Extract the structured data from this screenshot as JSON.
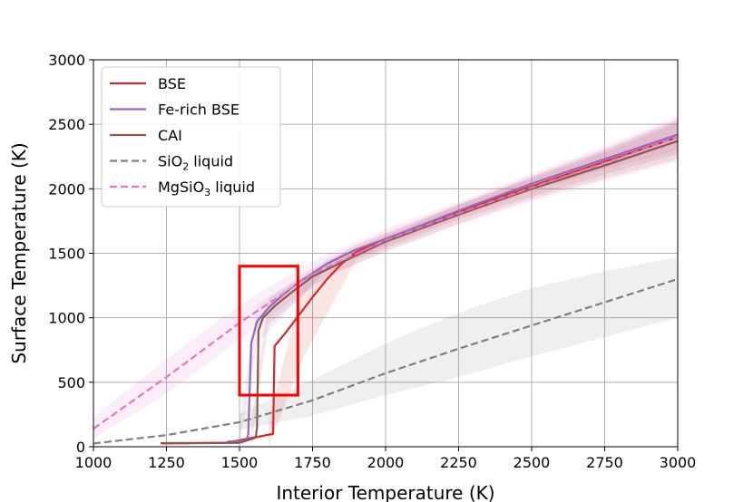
{
  "chart_data": {
    "type": "line",
    "title": "",
    "xlabel": "Interior Temperature (K)",
    "ylabel": "Surface Temperature (K)",
    "xlim": [
      1000,
      3000
    ],
    "ylim": [
      0,
      3000
    ],
    "xticks": [
      1000,
      1250,
      1500,
      1750,
      2000,
      2250,
      2500,
      2750,
      3000
    ],
    "yticks": [
      0,
      500,
      1000,
      1500,
      2000,
      2500,
      3000
    ],
    "grid": true,
    "legend_position": "upper-left",
    "series": [
      {
        "name": "BSE",
        "label_main": "BSE",
        "label_sub": "",
        "label_tail": "",
        "color": "#d62728",
        "dash": "solid",
        "points": [
          [
            1230,
            25
          ],
          [
            1450,
            30
          ],
          [
            1570,
            80
          ],
          [
            1615,
            100
          ],
          [
            1620,
            780
          ],
          [
            1660,
            890
          ],
          [
            1700,
            1010
          ],
          [
            1750,
            1160
          ],
          [
            1800,
            1300
          ],
          [
            1850,
            1420
          ],
          [
            1900,
            1510
          ],
          [
            2000,
            1610
          ],
          [
            2250,
            1820
          ],
          [
            2500,
            2020
          ],
          [
            2750,
            2210
          ],
          [
            3000,
            2400
          ]
        ],
        "band": [
          [
            1600,
            0,
            200
          ],
          [
            1720,
            700,
            1300
          ],
          [
            1900,
            1450,
            1570
          ],
          [
            2250,
            1760,
            1880
          ],
          [
            2500,
            1940,
            2090
          ],
          [
            2750,
            2110,
            2300
          ],
          [
            3000,
            2270,
            2530
          ]
        ]
      },
      {
        "name": "Fe-rich BSE",
        "label_main": "Fe-rich BSE",
        "label_sub": "",
        "label_tail": "",
        "color": "#9467bd",
        "dash": "solid",
        "points": [
          [
            1460,
            40
          ],
          [
            1525,
            50
          ],
          [
            1530,
            100
          ],
          [
            1540,
            800
          ],
          [
            1560,
            970
          ],
          [
            1600,
            1080
          ],
          [
            1650,
            1180
          ],
          [
            1700,
            1270
          ],
          [
            1800,
            1420
          ],
          [
            1900,
            1530
          ],
          [
            2000,
            1610
          ],
          [
            2250,
            1830
          ],
          [
            2500,
            2040
          ],
          [
            2750,
            2230
          ],
          [
            3000,
            2420
          ]
        ],
        "band": [
          [
            1500,
            0,
            200
          ],
          [
            1560,
            800,
            1100
          ],
          [
            1800,
            1380,
            1460
          ],
          [
            2250,
            1780,
            1880
          ],
          [
            2500,
            1980,
            2100
          ],
          [
            2750,
            2150,
            2310
          ],
          [
            3000,
            2300,
            2540
          ]
        ]
      },
      {
        "name": "CAI",
        "label_main": "CAI",
        "label_sub": "",
        "label_tail": "",
        "color": "#8c564b",
        "dash": "solid",
        "points": [
          [
            1230,
            28
          ],
          [
            1500,
            30
          ],
          [
            1555,
            70
          ],
          [
            1560,
            150
          ],
          [
            1565,
            900
          ],
          [
            1580,
            1000
          ],
          [
            1620,
            1090
          ],
          [
            1680,
            1200
          ],
          [
            1750,
            1320
          ],
          [
            1850,
            1430
          ],
          [
            2000,
            1590
          ],
          [
            2250,
            1800
          ],
          [
            2500,
            2000
          ],
          [
            2750,
            2180
          ],
          [
            3000,
            2370
          ]
        ],
        "band": [
          [
            1540,
            0,
            200
          ],
          [
            1600,
            950,
            1150
          ],
          [
            1800,
            1330,
            1440
          ],
          [
            2250,
            1730,
            1870
          ],
          [
            2500,
            1920,
            2080
          ],
          [
            2750,
            2080,
            2280
          ],
          [
            3000,
            2230,
            2510
          ]
        ]
      },
      {
        "name": "SiO2 liquid",
        "label_main": "SiO",
        "label_sub": "2",
        "label_tail": " liquid",
        "color": "#7f7f7f",
        "dash": "dashed",
        "points": [
          [
            1000,
            25
          ],
          [
            1250,
            90
          ],
          [
            1500,
            190
          ],
          [
            1750,
            360
          ],
          [
            2000,
            570
          ],
          [
            2250,
            760
          ],
          [
            2500,
            940
          ],
          [
            2750,
            1120
          ],
          [
            3000,
            1300
          ]
        ],
        "band": [
          [
            1500,
            130,
            260
          ],
          [
            1750,
            240,
            520
          ],
          [
            2000,
            400,
            800
          ],
          [
            2250,
            540,
            1040
          ],
          [
            2500,
            700,
            1230
          ],
          [
            2750,
            850,
            1360
          ],
          [
            3000,
            1000,
            1470
          ]
        ]
      },
      {
        "name": "MgSiO3 liquid",
        "label_main": "MgSiO",
        "label_sub": "3",
        "label_tail": " liquid",
        "color": "#e377c2",
        "dash": "dashed",
        "points": [
          [
            1000,
            140
          ],
          [
            1250,
            540
          ],
          [
            1500,
            960
          ],
          [
            1750,
            1340
          ],
          [
            2000,
            1600
          ],
          [
            2250,
            1810
          ],
          [
            2500,
            2010
          ],
          [
            2750,
            2200
          ],
          [
            3000,
            2400
          ]
        ],
        "band": [
          [
            1000,
            60,
            230
          ],
          [
            1250,
            410,
            680
          ],
          [
            1500,
            830,
            1100
          ],
          [
            1750,
            1250,
            1440
          ],
          [
            2000,
            1520,
            1690
          ],
          [
            2250,
            1720,
            1900
          ],
          [
            2500,
            1900,
            2120
          ],
          [
            2750,
            2060,
            2330
          ],
          [
            3000,
            2210,
            2560
          ]
        ]
      }
    ],
    "annotations": [
      {
        "type": "rectangle",
        "x": [
          1500,
          1700
        ],
        "y": [
          400,
          1400
        ],
        "color": "#ff0000"
      }
    ]
  }
}
